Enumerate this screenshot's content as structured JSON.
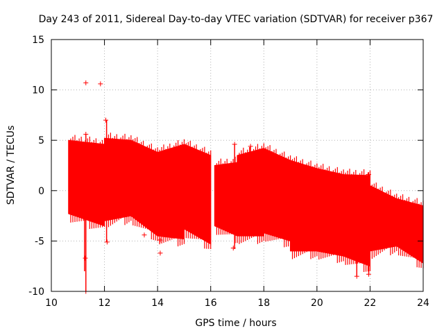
{
  "chart_data": {
    "type": "scatter",
    "title": "Day 243 of 2011, Sidereal Day-to-day VTEC variation (SDTVAR) for receiver p367",
    "xlabel": "GPS time / hours",
    "ylabel": "SDTVAR / TECUs",
    "xlim": [
      10,
      24
    ],
    "ylim": [
      -10,
      15
    ],
    "xticks": [
      10,
      12,
      14,
      16,
      18,
      20,
      22,
      24
    ],
    "yticks": [
      -10,
      -5,
      0,
      5,
      10,
      15
    ],
    "grid": true,
    "marker": "+",
    "series_color": "#ff0000",
    "band_segments": [
      {
        "x": [
          10.65,
          12.0
        ],
        "upper": [
          5.0,
          4.6
        ],
        "lower": [
          -2.3,
          -3.5
        ]
      },
      {
        "x": [
          12.0,
          13.0
        ],
        "upper": [
          5.2,
          5.0
        ],
        "lower": [
          -3.0,
          -2.5
        ]
      },
      {
        "x": [
          13.0,
          14.0
        ],
        "upper": [
          5.0,
          3.8
        ],
        "lower": [
          -2.5,
          -4.5
        ]
      },
      {
        "x": [
          14.0,
          15.0
        ],
        "upper": [
          3.8,
          4.6
        ],
        "lower": [
          -4.5,
          -4.8
        ]
      },
      {
        "x": [
          15.0,
          16.0
        ],
        "upper": [
          4.6,
          3.5
        ],
        "lower": [
          -3.8,
          -5.3
        ]
      },
      {
        "x": [
          16.15,
          17.0
        ],
        "upper": [
          2.5,
          2.8
        ],
        "lower": [
          -3.5,
          -4.5
        ]
      },
      {
        "x": [
          17.0,
          18.0
        ],
        "upper": [
          3.5,
          4.2
        ],
        "lower": [
          -4.5,
          -4.5
        ]
      },
      {
        "x": [
          18.0,
          19.0
        ],
        "upper": [
          4.2,
          3.0
        ],
        "lower": [
          -4.2,
          -5.0
        ]
      },
      {
        "x": [
          19.0,
          20.0
        ],
        "upper": [
          3.0,
          2.2
        ],
        "lower": [
          -6.0,
          -6.0
        ]
      },
      {
        "x": [
          20.0,
          21.0
        ],
        "upper": [
          2.2,
          1.6
        ],
        "lower": [
          -6.0,
          -6.5
        ]
      },
      {
        "x": [
          21.0,
          22.0
        ],
        "upper": [
          1.6,
          1.5
        ],
        "lower": [
          -6.5,
          -7.5
        ]
      },
      {
        "x": [
          22.0,
          23.0
        ],
        "upper": [
          0.5,
          -0.8
        ],
        "lower": [
          -6.0,
          -5.5
        ]
      },
      {
        "x": [
          23.0,
          24.0
        ],
        "upper": [
          -0.8,
          -1.5
        ],
        "lower": [
          -5.5,
          -7.2
        ]
      }
    ],
    "outliers": [
      {
        "x": 11.3,
        "y": 10.7
      },
      {
        "x": 11.85,
        "y": 10.6
      },
      {
        "x": 11.3,
        "y": 5.6
      },
      {
        "x": 11.3,
        "y": -10.0
      },
      {
        "x": 11.28,
        "y": -6.7
      },
      {
        "x": 12.05,
        "y": 7.0
      },
      {
        "x": 12.1,
        "y": -5.1
      },
      {
        "x": 13.5,
        "y": -4.4
      },
      {
        "x": 14.1,
        "y": -4.9
      },
      {
        "x": 14.1,
        "y": -6.2
      },
      {
        "x": 16.9,
        "y": 4.6
      },
      {
        "x": 17.5,
        "y": 4.4
      },
      {
        "x": 16.85,
        "y": -5.7
      },
      {
        "x": 21.5,
        "y": -8.5
      },
      {
        "x": 21.95,
        "y": -8.3
      },
      {
        "x": 21.95,
        "y": 1.6
      }
    ],
    "spikes": [
      {
        "x": 11.3,
        "y0": -10.0,
        "y1": 5.6
      },
      {
        "x": 11.25,
        "y0": -8.0,
        "y1": 4.0
      },
      {
        "x": 12.08,
        "y0": -5.1,
        "y1": 7.0
      },
      {
        "x": 16.9,
        "y0": -5.8,
        "y1": 4.6
      },
      {
        "x": 17.5,
        "y0": -3.0,
        "y1": 4.4
      },
      {
        "x": 21.5,
        "y0": -8.5,
        "y1": 1.0
      },
      {
        "x": 21.95,
        "y0": -8.3,
        "y1": 1.6
      }
    ]
  }
}
